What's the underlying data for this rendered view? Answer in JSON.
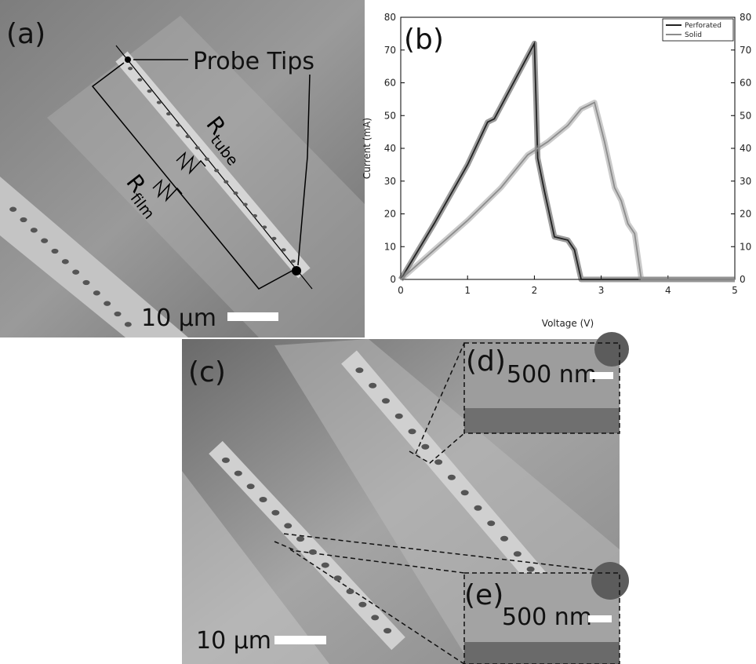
{
  "panels": {
    "a": {
      "label": "(a)",
      "probe_label": "Probe Tips",
      "r_tube": {
        "symbol": "R",
        "subscript": "tube"
      },
      "r_film": {
        "symbol": "R",
        "subscript": "film"
      },
      "scale_bar": "10 µm"
    },
    "c": {
      "label": "(c)",
      "scale_bar": "10 µm"
    },
    "d": {
      "label": "(d)",
      "scale_bar": "500 nm"
    },
    "e": {
      "label": "(e)",
      "scale_bar": "500 nm"
    }
  },
  "chart_data": {
    "type": "line",
    "title": "(b)",
    "x_label": "Voltage (V)",
    "y_label": "Current (mA)",
    "xlim": [
      0,
      5
    ],
    "xticks": [
      0,
      1,
      2,
      3,
      4,
      5
    ],
    "ylim": [
      0,
      80
    ],
    "yticks": [
      0,
      10,
      20,
      30,
      40,
      50,
      60,
      70,
      80
    ],
    "y2lim": [
      0,
      80
    ],
    "y2ticks": [
      0,
      10,
      20,
      30,
      40,
      50,
      60,
      70,
      80
    ],
    "legend": "upper right",
    "series": [
      {
        "name": "Perforated",
        "color": "#222222",
        "x": [
          0,
          0.5,
          1,
          1.3,
          1.4,
          2,
          2.05,
          2.15,
          2.3,
          2.5,
          2.6,
          2.7,
          5
        ],
        "values": [
          0,
          17,
          35,
          48,
          49,
          72,
          37,
          27,
          13,
          12,
          9,
          0,
          0
        ]
      },
      {
        "name": "Solid",
        "color": "#8c8c8c",
        "x": [
          0,
          0.5,
          1,
          1.5,
          1.9,
          2.2,
          2.5,
          2.7,
          2.9,
          3.05,
          3.2,
          3.3,
          3.4,
          3.5,
          3.6,
          5
        ],
        "values": [
          0,
          9,
          18,
          28,
          38,
          42,
          47,
          52,
          54,
          42,
          28,
          24,
          17,
          14,
          0,
          0
        ]
      }
    ]
  }
}
